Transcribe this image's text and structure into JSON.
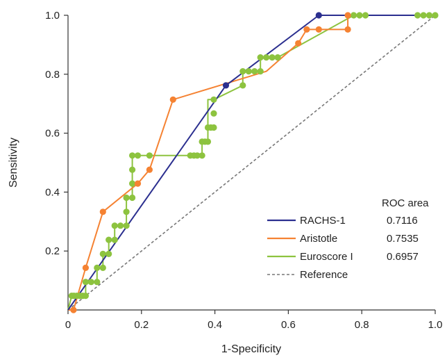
{
  "chart_data": {
    "type": "line",
    "title": "",
    "xlabel": "1-Specificity",
    "ylabel": "Sensitivity",
    "xlim": [
      0,
      1
    ],
    "ylim": [
      0,
      1
    ],
    "x_ticks": [
      {
        "value": 0,
        "label": "0"
      },
      {
        "value": 0.2,
        "label": "0.2"
      },
      {
        "value": 0.4,
        "label": "0.4"
      },
      {
        "value": 0.6,
        "label": "0.6"
      },
      {
        "value": 0.8,
        "label": "0.8"
      },
      {
        "value": 1.0,
        "label": "1.0"
      }
    ],
    "y_ticks": [
      {
        "value": 0.2,
        "label": "0.2"
      },
      {
        "value": 0.4,
        "label": "0.4"
      },
      {
        "value": 0.6,
        "label": "0.6"
      },
      {
        "value": 0.8,
        "label": "0.8"
      },
      {
        "value": 1.0,
        "label": "1.0"
      }
    ],
    "grid": false,
    "legend": {
      "position": "bottom-right",
      "header": "ROC area",
      "entries": [
        {
          "name": "RACHS-1",
          "value": "0.7116",
          "color": "#2b2f8f",
          "dashed": false
        },
        {
          "name": "Aristotle",
          "value": "0.7535",
          "color": "#f58232",
          "dashed": false
        },
        {
          "name": "Euroscore I",
          "value": "0.6957",
          "color": "#8dc33f",
          "dashed": false
        },
        {
          "name": "Reference",
          "value": "",
          "color": "#777777",
          "dashed": true
        }
      ]
    },
    "series": [
      {
        "name": "RACHS-1",
        "color": "#2b2f8f",
        "points": [
          [
            0,
            0
          ],
          [
            0.43,
            0.762
          ],
          [
            0.683,
            1.0
          ],
          [
            1.0,
            1.0
          ]
        ],
        "markers": [
          [
            0.43,
            0.762
          ],
          [
            0.683,
            1.0
          ]
        ]
      },
      {
        "name": "Aristotle",
        "color": "#f58232",
        "points": [
          [
            0,
            0
          ],
          [
            0.015,
            0
          ],
          [
            0.048,
            0.143
          ],
          [
            0.095,
            0.333
          ],
          [
            0.19,
            0.429
          ],
          [
            0.222,
            0.476
          ],
          [
            0.286,
            0.714
          ],
          [
            0.54,
            0.81
          ],
          [
            0.627,
            0.905
          ],
          [
            0.65,
            0.952
          ],
          [
            0.683,
            0.952
          ],
          [
            0.762,
            0.952
          ],
          [
            0.762,
            1.0
          ],
          [
            1.0,
            1.0
          ]
        ],
        "markers": [
          [
            0.015,
            0
          ],
          [
            0.048,
            0.143
          ],
          [
            0.095,
            0.333
          ],
          [
            0.19,
            0.429
          ],
          [
            0.222,
            0.476
          ],
          [
            0.286,
            0.714
          ],
          [
            0.627,
            0.905
          ],
          [
            0.65,
            0.952
          ],
          [
            0.683,
            0.952
          ],
          [
            0.762,
            0.952
          ],
          [
            0.762,
            1.0
          ]
        ]
      },
      {
        "name": "Euroscore I",
        "color": "#8dc33f",
        "points": [
          [
            0,
            0
          ],
          [
            0.01,
            0.048
          ],
          [
            0.048,
            0.048
          ],
          [
            0.048,
            0.095
          ],
          [
            0.079,
            0.095
          ],
          [
            0.079,
            0.143
          ],
          [
            0.095,
            0.143
          ],
          [
            0.095,
            0.19
          ],
          [
            0.111,
            0.19
          ],
          [
            0.111,
            0.238
          ],
          [
            0.127,
            0.238
          ],
          [
            0.127,
            0.286
          ],
          [
            0.159,
            0.286
          ],
          [
            0.159,
            0.381
          ],
          [
            0.175,
            0.381
          ],
          [
            0.175,
            0.524
          ],
          [
            0.365,
            0.524
          ],
          [
            0.365,
            0.571
          ],
          [
            0.381,
            0.571
          ],
          [
            0.381,
            0.714
          ],
          [
            0.397,
            0.714
          ],
          [
            0.476,
            0.762
          ],
          [
            0.476,
            0.81
          ],
          [
            0.524,
            0.81
          ],
          [
            0.524,
            0.857
          ],
          [
            0.571,
            0.857
          ],
          [
            0.778,
            1.0
          ],
          [
            1.0,
            1.0
          ]
        ],
        "markers": [
          [
            0.01,
            0.048
          ],
          [
            0.016,
            0.048
          ],
          [
            0.024,
            0.048
          ],
          [
            0.032,
            0.048
          ],
          [
            0.04,
            0.048
          ],
          [
            0.048,
            0.048
          ],
          [
            0.048,
            0.095
          ],
          [
            0.063,
            0.095
          ],
          [
            0.079,
            0.095
          ],
          [
            0.079,
            0.143
          ],
          [
            0.095,
            0.143
          ],
          [
            0.095,
            0.19
          ],
          [
            0.111,
            0.19
          ],
          [
            0.111,
            0.238
          ],
          [
            0.127,
            0.238
          ],
          [
            0.127,
            0.286
          ],
          [
            0.143,
            0.286
          ],
          [
            0.159,
            0.286
          ],
          [
            0.159,
            0.333
          ],
          [
            0.159,
            0.381
          ],
          [
            0.175,
            0.381
          ],
          [
            0.175,
            0.429
          ],
          [
            0.175,
            0.476
          ],
          [
            0.175,
            0.524
          ],
          [
            0.19,
            0.524
          ],
          [
            0.222,
            0.524
          ],
          [
            0.333,
            0.524
          ],
          [
            0.343,
            0.524
          ],
          [
            0.352,
            0.524
          ],
          [
            0.365,
            0.524
          ],
          [
            0.365,
            0.571
          ],
          [
            0.373,
            0.571
          ],
          [
            0.381,
            0.571
          ],
          [
            0.381,
            0.619
          ],
          [
            0.389,
            0.619
          ],
          [
            0.397,
            0.619
          ],
          [
            0.397,
            0.667
          ],
          [
            0.397,
            0.714
          ],
          [
            0.476,
            0.762
          ],
          [
            0.476,
            0.81
          ],
          [
            0.492,
            0.81
          ],
          [
            0.508,
            0.81
          ],
          [
            0.524,
            0.81
          ],
          [
            0.524,
            0.857
          ],
          [
            0.54,
            0.857
          ],
          [
            0.556,
            0.857
          ],
          [
            0.571,
            0.857
          ],
          [
            0.778,
            1.0
          ],
          [
            0.794,
            1.0
          ],
          [
            0.81,
            1.0
          ],
          [
            0.952,
            1.0
          ],
          [
            0.968,
            1.0
          ],
          [
            0.984,
            1.0
          ],
          [
            1.0,
            1.0
          ]
        ]
      },
      {
        "name": "Reference",
        "color": "#777777",
        "dashed": true,
        "points": [
          [
            0,
            0
          ],
          [
            1,
            1
          ]
        ],
        "markers": []
      }
    ]
  }
}
